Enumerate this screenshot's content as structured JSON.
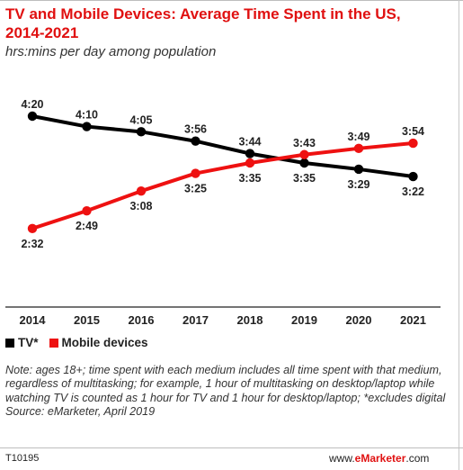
{
  "title": "TV and Mobile Devices: Average Time Spent in the US, 2014-2021",
  "subtitle": "hrs:mins per day among population",
  "chart_data": {
    "type": "line",
    "categories": [
      "2014",
      "2015",
      "2016",
      "2017",
      "2018",
      "2019",
      "2020",
      "2021"
    ],
    "series": [
      {
        "name": "TV*",
        "color": "#000000",
        "values": [
          260,
          250,
          245,
          236,
          224,
          215,
          209,
          202
        ],
        "labels": [
          "4:20",
          "4:10",
          "4:05",
          "3:56",
          "3:44",
          "3:35",
          "3:29",
          "3:22"
        ]
      },
      {
        "name": "Mobile devices",
        "color": "#ee1111",
        "values": [
          152,
          169,
          188,
          205,
          215,
          223,
          229,
          234
        ],
        "labels": [
          "2:32",
          "2:49",
          "3:08",
          "3:25",
          "3:35",
          "3:43",
          "3:49",
          "3:54"
        ]
      }
    ],
    "legend": "bottom-left",
    "grid": false
  },
  "notes": "Note: ages 18+; time spent with each medium includes all time spent with that medium, regardless of multitasking; for example, 1 hour of multitasking on desktop/laptop while watching TV is counted as 1 hour for TV and 1 hour for desktop/laptop; *excludes digital",
  "source": "Source: eMarketer, April 2019",
  "footer": {
    "id": "T10195",
    "brand_prefix": "www.",
    "brand_name": "eMarketer",
    "brand_suffix": ".com"
  }
}
